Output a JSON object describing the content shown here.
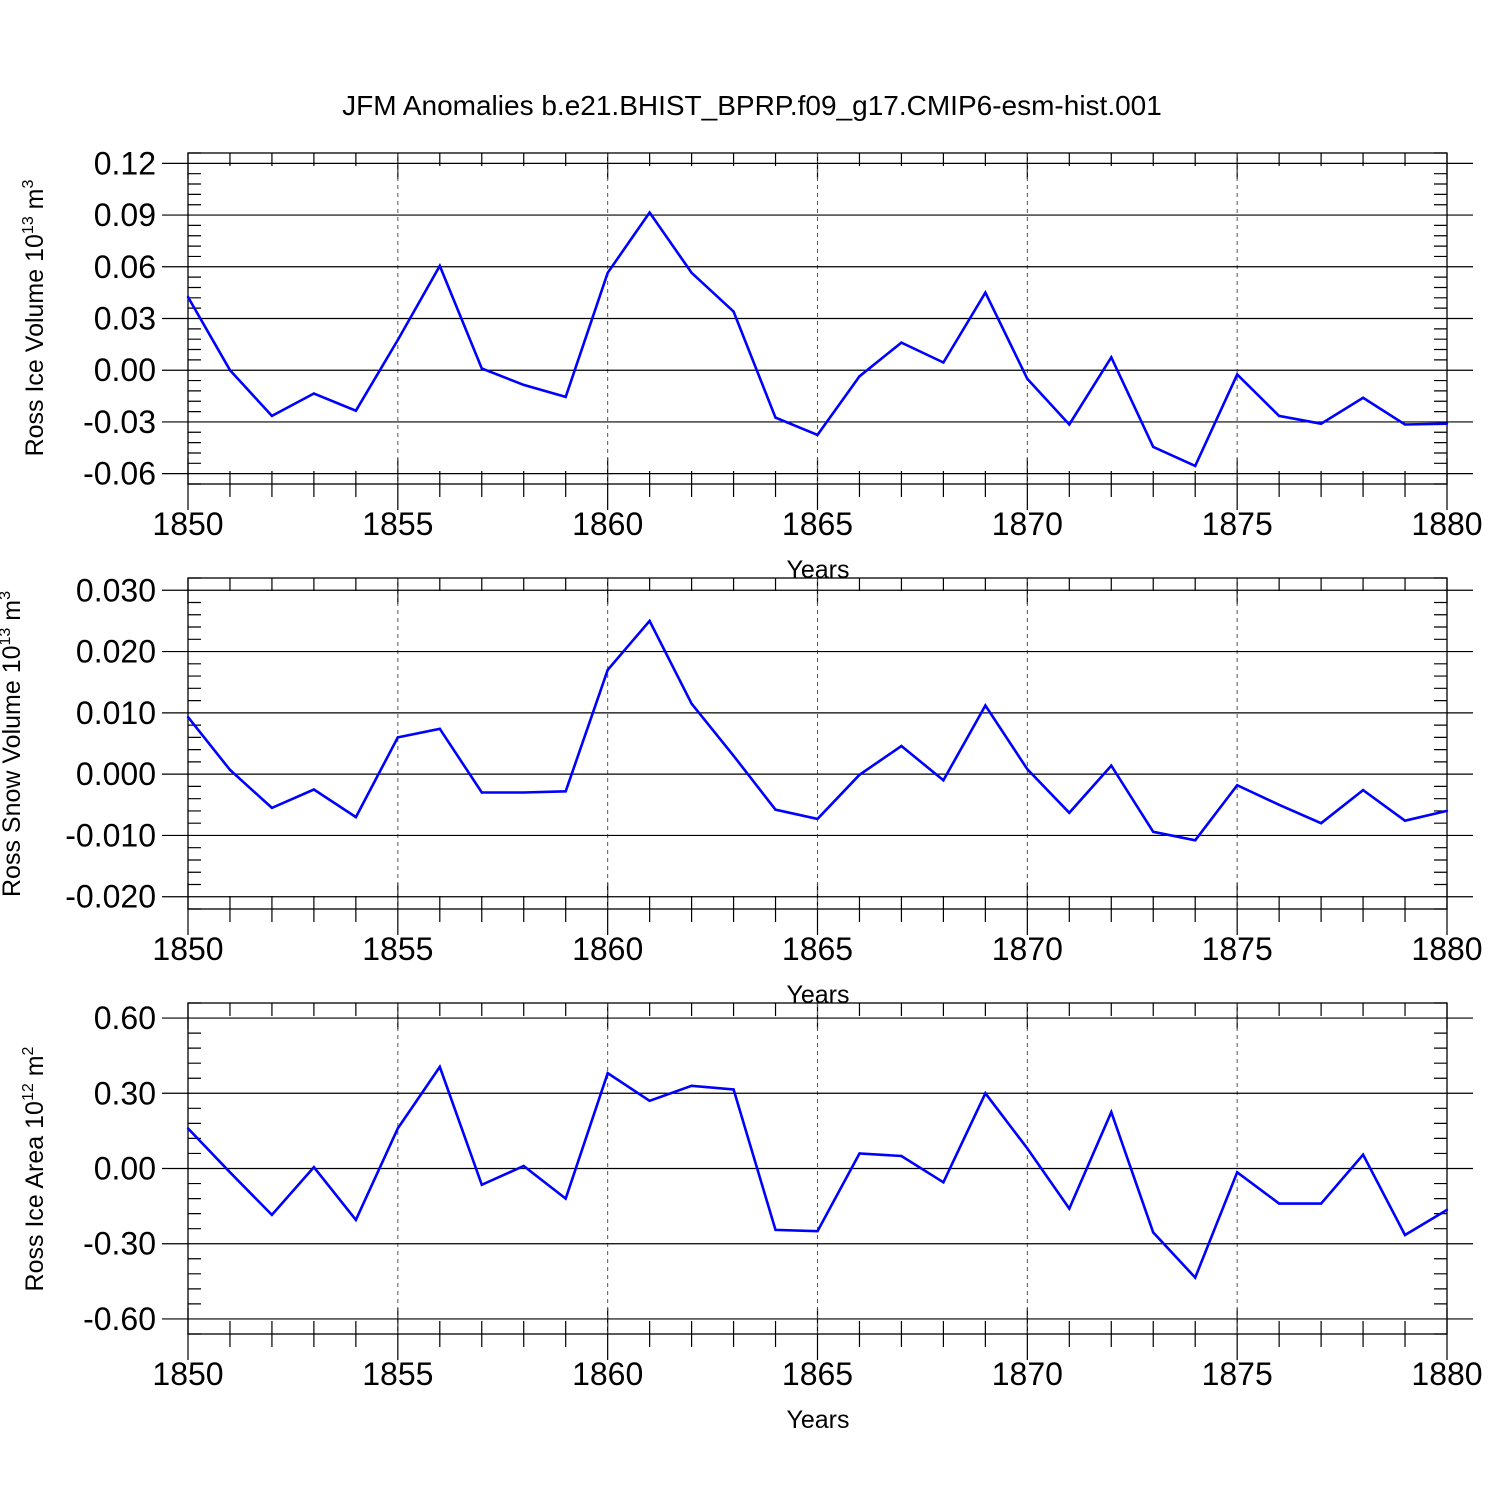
{
  "title": "JFM Anomalies b.e21.BHIST_BPRP.f09_g17.CMIP6-esm-hist.001",
  "colors": {
    "line": "#0000ff",
    "axis": "#000000",
    "grid": "#555555"
  },
  "chart_data": [
    {
      "type": "line",
      "ylabel": "Ross Ice Volume",
      "yunit_base": "10",
      "yunit_exp": "13",
      "yunit_dim": "m",
      "yunit_dim_exp": "3",
      "xlabel": "Years",
      "xlim": [
        1850,
        1880
      ],
      "ylim": [
        -0.066,
        0.126
      ],
      "yticks": [
        0.12,
        0.09,
        0.06,
        0.03,
        0.0,
        -0.03,
        -0.06
      ],
      "ytick_labels": [
        "0.12",
        "0.09",
        "0.06",
        "0.03",
        "0.00",
        "-0.03",
        "-0.06"
      ],
      "xticks": [
        1850,
        1855,
        1860,
        1865,
        1870,
        1875,
        1880
      ],
      "xtick_labels": [
        "1850",
        "1855",
        "1860",
        "1865",
        "1870",
        "1875",
        "1880"
      ],
      "x": [
        1850,
        1851,
        1852,
        1853,
        1854,
        1855,
        1856,
        1857,
        1858,
        1859,
        1860,
        1861,
        1862,
        1863,
        1864,
        1865,
        1866,
        1867,
        1868,
        1869,
        1870,
        1871,
        1872,
        1873,
        1874,
        1875,
        1876,
        1877,
        1878,
        1879,
        1880
      ],
      "values": [
        0.0425,
        0.0,
        -0.0265,
        -0.0135,
        -0.0235,
        0.0175,
        0.0605,
        0.001,
        -0.0085,
        -0.0155,
        0.0565,
        0.0915,
        0.0565,
        0.034,
        -0.0275,
        -0.0375,
        -0.0035,
        0.016,
        0.0045,
        0.045,
        -0.005,
        -0.0315,
        0.0075,
        -0.0445,
        -0.0555,
        -0.0025,
        -0.0265,
        -0.031,
        -0.016,
        -0.0315,
        -0.031
      ]
    },
    {
      "type": "line",
      "ylabel": "Ross Snow Volume",
      "yunit_base": "10",
      "yunit_exp": "13",
      "yunit_dim": "m",
      "yunit_dim_exp": "3",
      "xlabel": "Years",
      "xlim": [
        1850,
        1880
      ],
      "ylim": [
        -0.022,
        0.032
      ],
      "yticks": [
        0.03,
        0.02,
        0.01,
        0.0,
        -0.01,
        -0.02
      ],
      "ytick_labels": [
        "0.030",
        "0.020",
        "0.010",
        "0.000",
        "-0.010",
        "-0.020"
      ],
      "xticks": [
        1850,
        1855,
        1860,
        1865,
        1870,
        1875,
        1880
      ],
      "xtick_labels": [
        "1850",
        "1855",
        "1860",
        "1865",
        "1870",
        "1875",
        "1880"
      ],
      "x": [
        1850,
        1851,
        1852,
        1853,
        1854,
        1855,
        1856,
        1857,
        1858,
        1859,
        1860,
        1861,
        1862,
        1863,
        1864,
        1865,
        1866,
        1867,
        1868,
        1869,
        1870,
        1871,
        1872,
        1873,
        1874,
        1875,
        1876,
        1877,
        1878,
        1879,
        1880
      ],
      "values": [
        0.0093,
        0.0007,
        -0.0055,
        -0.0025,
        -0.007,
        0.006,
        0.0074,
        -0.003,
        -0.003,
        -0.0028,
        0.017,
        0.025,
        0.0115,
        0.003,
        -0.0058,
        -0.0073,
        -0.0001,
        0.0046,
        -0.001,
        0.0112,
        0.0008,
        -0.0063,
        0.0014,
        -0.0094,
        -0.0108,
        -0.0018,
        -0.005,
        -0.008,
        -0.0026,
        -0.0076,
        -0.006
      ]
    },
    {
      "type": "line",
      "ylabel": "Ross Ice Area",
      "yunit_base": "10",
      "yunit_exp": "12",
      "yunit_dim": "m",
      "yunit_dim_exp": "2",
      "xlabel": "Years",
      "xlim": [
        1850,
        1880
      ],
      "ylim": [
        -0.66,
        0.66
      ],
      "yticks": [
        0.6,
        0.3,
        0.0,
        -0.3,
        -0.6
      ],
      "ytick_labels": [
        "0.60",
        "0.30",
        "0.00",
        "-0.30",
        "-0.60"
      ],
      "xticks": [
        1850,
        1855,
        1860,
        1865,
        1870,
        1875,
        1880
      ],
      "xtick_labels": [
        "1850",
        "1855",
        "1860",
        "1865",
        "1870",
        "1875",
        "1880"
      ],
      "x": [
        1850,
        1851,
        1852,
        1853,
        1854,
        1855,
        1856,
        1857,
        1858,
        1859,
        1860,
        1861,
        1862,
        1863,
        1864,
        1865,
        1866,
        1867,
        1868,
        1869,
        1870,
        1871,
        1872,
        1873,
        1874,
        1875,
        1876,
        1877,
        1878,
        1879,
        1880
      ],
      "values": [
        0.16,
        -0.015,
        -0.185,
        0.005,
        -0.205,
        0.16,
        0.405,
        -0.065,
        0.01,
        -0.12,
        0.38,
        0.27,
        0.33,
        0.315,
        -0.245,
        -0.25,
        0.06,
        0.05,
        -0.055,
        0.3,
        0.08,
        -0.16,
        0.225,
        -0.255,
        -0.435,
        -0.015,
        -0.14,
        -0.14,
        0.055,
        -0.265,
        -0.165
      ]
    }
  ]
}
